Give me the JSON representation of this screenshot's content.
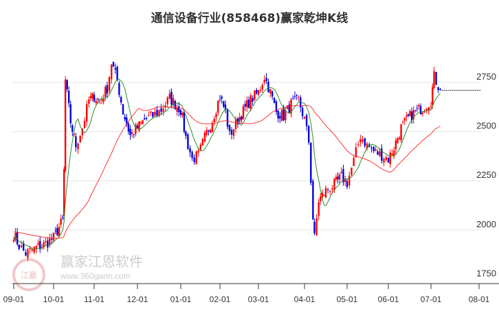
{
  "chart_data": {
    "type": "candlestick",
    "title": "通信设备行业(858468)赢家乾坤K线",
    "y_ticks": [
      2750,
      2500,
      2250,
      2000,
      1750
    ],
    "ylim": [
      1750,
      2900
    ],
    "x_ticks": [
      "09-01",
      "10-01",
      "11-01",
      "12-01",
      "01-01",
      "02-01",
      "03-01",
      "04-01",
      "05-01",
      "06-01",
      "07-01",
      "08-01"
    ],
    "series_close": [
      [
        "09-01",
        1980
      ],
      [
        "09-05",
        1920
      ],
      [
        "09-10",
        1880
      ],
      [
        "09-18",
        1910
      ],
      [
        "09-25",
        1930
      ],
      [
        "10-01",
        1960
      ],
      [
        "10-08",
        2050
      ],
      [
        "10-09",
        2300
      ],
      [
        "10-10",
        2760
      ],
      [
        "10-14",
        2550
      ],
      [
        "10-18",
        2430
      ],
      [
        "10-23",
        2520
      ],
      [
        "10-28",
        2660
      ],
      [
        "11-01",
        2680
      ],
      [
        "11-05",
        2650
      ],
      [
        "11-10",
        2720
      ],
      [
        "11-13",
        2850
      ],
      [
        "11-17",
        2760
      ],
      [
        "11-21",
        2600
      ],
      [
        "11-26",
        2480
      ],
      [
        "12-01",
        2520
      ],
      [
        "12-06",
        2560
      ],
      [
        "12-12",
        2580
      ],
      [
        "12-18",
        2610
      ],
      [
        "12-24",
        2670
      ],
      [
        "01-01",
        2610
      ],
      [
        "01-05",
        2470
      ],
      [
        "01-10",
        2360
      ],
      [
        "01-15",
        2380
      ],
      [
        "01-20",
        2470
      ],
      [
        "01-26",
        2560
      ],
      [
        "02-01",
        2680
      ],
      [
        "02-05",
        2600
      ],
      [
        "02-08",
        2480
      ],
      [
        "02-14",
        2560
      ],
      [
        "02-22",
        2650
      ],
      [
        "03-01",
        2700
      ],
      [
        "03-05",
        2780
      ],
      [
        "03-09",
        2700
      ],
      [
        "03-13",
        2600
      ],
      [
        "03-18",
        2580
      ],
      [
        "03-23",
        2640
      ],
      [
        "03-28",
        2660
      ],
      [
        "04-01",
        2560
      ],
      [
        "04-04",
        2450
      ],
      [
        "04-07",
        2060
      ],
      [
        "04-08",
        1960
      ],
      [
        "04-11",
        2150
      ],
      [
        "04-16",
        2200
      ],
      [
        "04-22",
        2230
      ],
      [
        "04-27",
        2270
      ],
      [
        "05-01",
        2240
      ],
      [
        "05-06",
        2350
      ],
      [
        "05-11",
        2480
      ],
      [
        "05-16",
        2430
      ],
      [
        "05-21",
        2400
      ],
      [
        "05-27",
        2380
      ],
      [
        "06-01",
        2360
      ],
      [
        "06-05",
        2420
      ],
      [
        "06-10",
        2520
      ],
      [
        "06-15",
        2570
      ],
      [
        "06-20",
        2600
      ],
      [
        "06-25",
        2620
      ],
      [
        "07-01",
        2660
      ],
      [
        "07-03",
        2780
      ],
      [
        "07-07",
        2710
      ]
    ],
    "ma_short_color": "#2e8b2e",
    "ma_long_color": "#ff3333",
    "up_color": "#ff0000",
    "down_color": "#0000dd",
    "last_close_line": 2710
  },
  "watermark": {
    "brand": "赢家江恩软件",
    "url": "www.360gann.com",
    "seal": "江赢恩家"
  }
}
